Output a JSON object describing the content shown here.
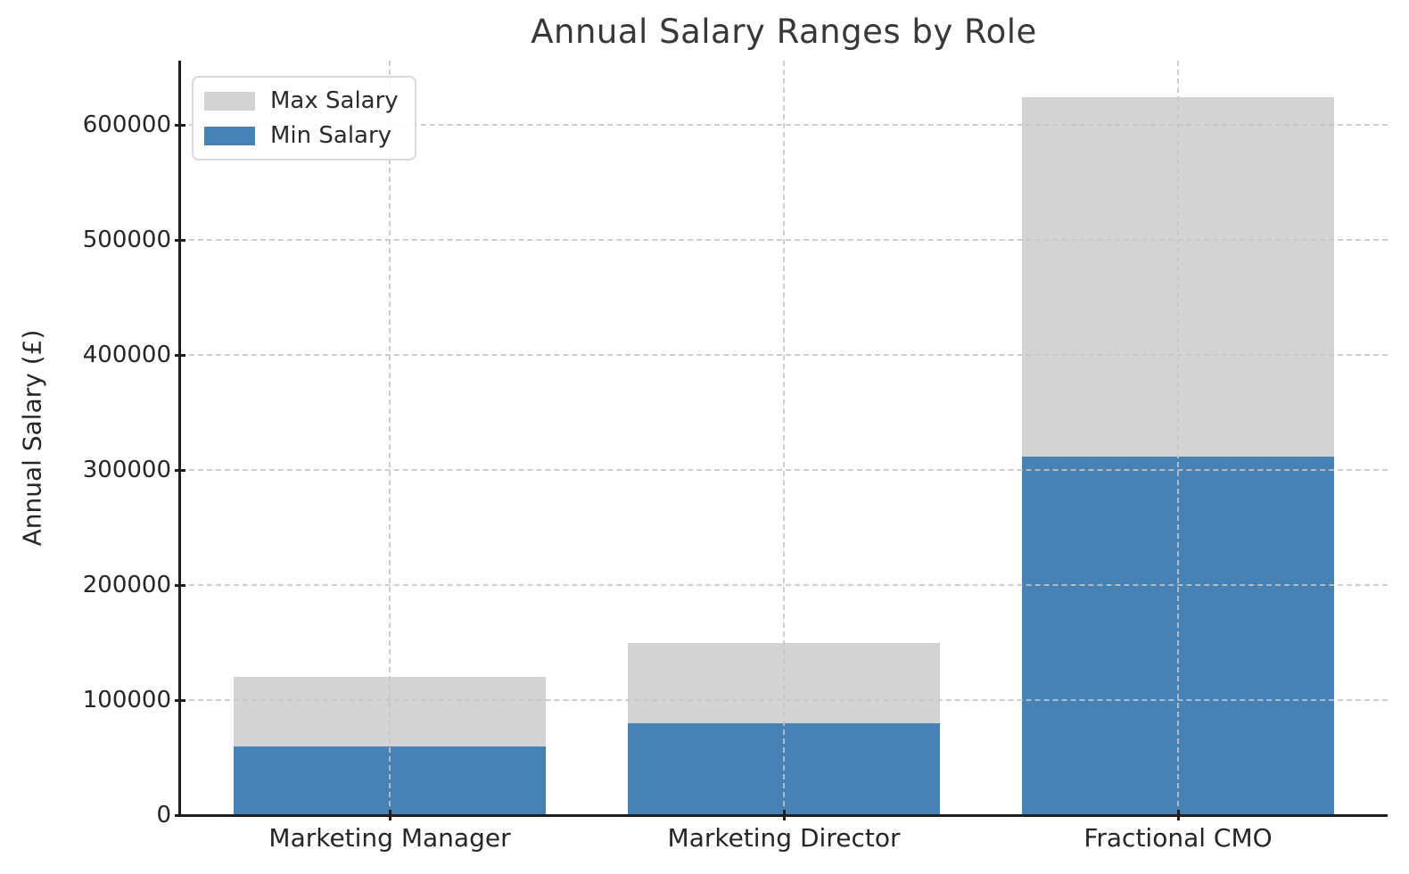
{
  "chart_data": {
    "type": "bar",
    "title": "Annual Salary Ranges by Role",
    "ylabel": "Annual Salary (£)",
    "xlabel": "",
    "categories": [
      "Marketing Manager",
      "Marketing Director",
      "Fractional CMO"
    ],
    "series": [
      {
        "name": "Max Salary",
        "color": "#d3d3d3",
        "values": [
          120000,
          150000,
          624000
        ]
      },
      {
        "name": "Min Salary",
        "color": "#4682b4",
        "values": [
          60000,
          80000,
          312000
        ]
      }
    ],
    "bar_mode": "overlay",
    "ylim": [
      0,
      656000
    ],
    "yticks": [
      0,
      100000,
      200000,
      300000,
      400000,
      500000,
      600000
    ],
    "grid": {
      "style": "dashed",
      "axes": "both",
      "drawn_over_bars": true
    },
    "legend": {
      "position": "upper-left"
    },
    "colors": {
      "axis": "#1f1f1f",
      "text": "#262626",
      "title": "#383838",
      "gridline": "#c5c5c5"
    }
  }
}
